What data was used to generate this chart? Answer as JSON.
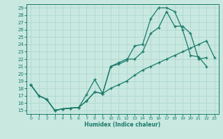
{
  "xlabel": "Humidex (Indice chaleur)",
  "bg_color": "#c8e8e0",
  "grid_color": "#b0d8d0",
  "line_color": "#1a7a6a",
  "xlim": [
    -0.5,
    23.5
  ],
  "ylim": [
    14.5,
    29.5
  ],
  "xticks": [
    0,
    1,
    2,
    3,
    4,
    5,
    6,
    7,
    8,
    9,
    10,
    11,
    12,
    13,
    14,
    15,
    16,
    17,
    18,
    19,
    20,
    21,
    22,
    23
  ],
  "yticks": [
    15,
    16,
    17,
    18,
    19,
    20,
    21,
    22,
    23,
    24,
    25,
    26,
    27,
    28,
    29
  ],
  "curve1_x": [
    0,
    1,
    2,
    3,
    4,
    5,
    6,
    7,
    8,
    9,
    10,
    11,
    12,
    13,
    14,
    15,
    16,
    17,
    18,
    19,
    20,
    21,
    22
  ],
  "curve1_y": [
    18.5,
    17.0,
    16.5,
    15.0,
    15.2,
    15.3,
    15.4,
    17.2,
    19.2,
    17.3,
    21.0,
    21.3,
    21.8,
    23.8,
    24.0,
    27.5,
    29.0,
    29.0,
    28.5,
    26.0,
    22.5,
    22.3,
    21.0
  ],
  "curve2_x": [
    0,
    1,
    2,
    3,
    4,
    5,
    6,
    7,
    8,
    9,
    10,
    11,
    12,
    13,
    14,
    15,
    16,
    17,
    18,
    19,
    20,
    21,
    22
  ],
  "curve2_y": [
    18.5,
    17.0,
    16.5,
    15.0,
    15.2,
    15.3,
    15.4,
    16.3,
    17.5,
    17.3,
    21.0,
    21.5,
    22.0,
    22.0,
    23.0,
    25.5,
    26.3,
    28.5,
    26.5,
    26.5,
    25.5,
    22.0,
    22.2
  ],
  "curve3_x": [
    0,
    1,
    2,
    3,
    4,
    5,
    6,
    7,
    8,
    9,
    10,
    11,
    12,
    13,
    14,
    15,
    16,
    17,
    18,
    19,
    20,
    21,
    22,
    23
  ],
  "curve3_y": [
    18.5,
    17.0,
    16.5,
    15.0,
    15.2,
    15.3,
    15.4,
    16.3,
    17.5,
    17.3,
    18.0,
    18.5,
    19.0,
    19.8,
    20.5,
    21.0,
    21.5,
    22.0,
    22.5,
    23.0,
    23.5,
    24.0,
    24.5,
    22.2
  ]
}
